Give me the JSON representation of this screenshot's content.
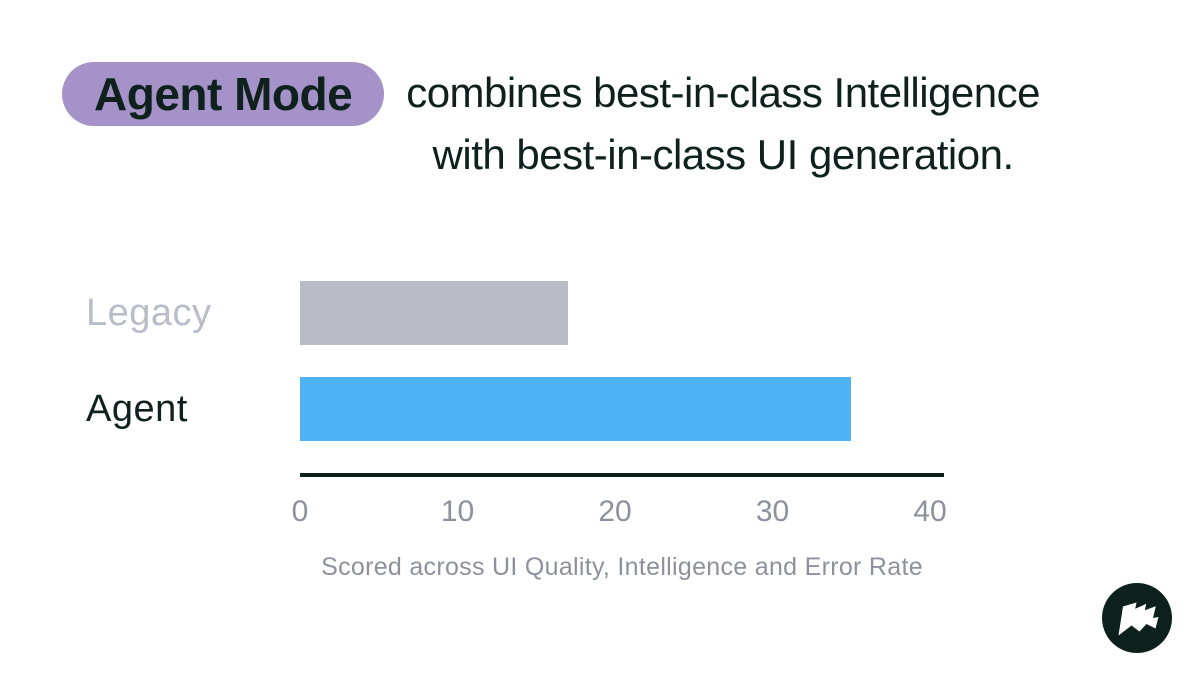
{
  "page": {
    "background": "#ffffff"
  },
  "header": {
    "badge_label": "Agent Mode",
    "title_line1": "combines best-in-class Intelligence",
    "title_line2": "with best-in-class UI generation.",
    "badge_bg": "#a592c9",
    "text_color": "#0e211d"
  },
  "chart_data": {
    "type": "bar",
    "orientation": "horizontal",
    "categories": [
      "Legacy",
      "Agent"
    ],
    "values": [
      17,
      35
    ],
    "xlim": [
      0,
      40
    ],
    "x_ticks": [
      0,
      10,
      20,
      30,
      40
    ],
    "bar_colors": [
      "#b9bcc6",
      "#4db3f4"
    ],
    "label_colors": [
      "#b9bdc9",
      "#0e211d"
    ],
    "axis_color": "#0e211d",
    "tick_color": "#8d919d",
    "caption": "Scored across UI Quality, Intelligence and Error Rate",
    "caption_color": "#8d919d",
    "grid": false,
    "legend": false
  },
  "logo": {
    "name": "flag-logo",
    "circle_color": "#0d211c",
    "glyph_color": "#ffffff"
  }
}
